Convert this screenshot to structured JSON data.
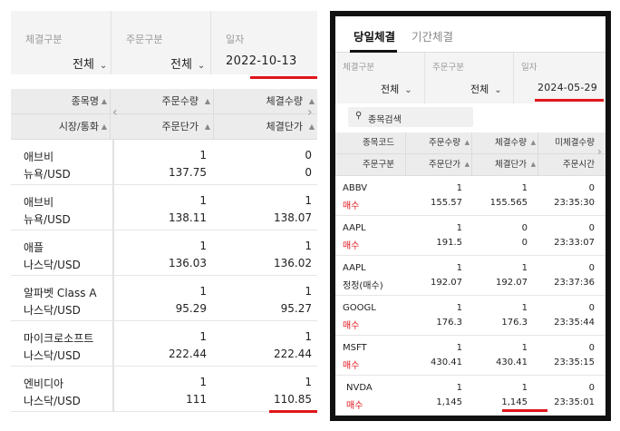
{
  "left": {
    "filters": {
      "exec_type_label": "체결구분",
      "exec_type_value": "전체",
      "order_type_label": "주문구분",
      "order_type_value": "전체",
      "date_label": "일자",
      "date_value": "2022-10-13"
    },
    "headers": {
      "row1": [
        "종목명",
        "주문수량",
        "체결수량"
      ],
      "row2": [
        "시장/통화",
        "주문단가",
        "체결단가"
      ]
    },
    "rows": [
      {
        "name": "애브비",
        "market": "뉴욕/USD",
        "order_qty": "1",
        "order_price": "137.75",
        "exec_qty": "0",
        "exec_price": "0"
      },
      {
        "name": "애브비",
        "market": "뉴욕/USD",
        "order_qty": "1",
        "order_price": "138.11",
        "exec_qty": "1",
        "exec_price": "138.07"
      },
      {
        "name": "애플",
        "market": "나스닥/USD",
        "order_qty": "1",
        "order_price": "136.03",
        "exec_qty": "1",
        "exec_price": "136.02"
      },
      {
        "name": "알파벳 Class A",
        "market": "나스닥/USD",
        "order_qty": "1",
        "order_price": "95.29",
        "exec_qty": "1",
        "exec_price": "95.27"
      },
      {
        "name": "마이크로소프트",
        "market": "나스닥/USD",
        "order_qty": "1",
        "order_price": "222.44",
        "exec_qty": "1",
        "exec_price": "222.44"
      },
      {
        "name": "엔비디아",
        "market": "나스닥/USD",
        "order_qty": "1",
        "order_price": "111",
        "exec_qty": "1",
        "exec_price": "110.85"
      }
    ]
  },
  "right": {
    "tabs": [
      "당일체결",
      "기간체결"
    ],
    "filters": {
      "exec_type_label": "체결구분",
      "exec_type_value": "전체",
      "order_type_label": "주문구분",
      "order_type_value": "전체",
      "date_label": "일자",
      "date_value": "2024-05-29"
    },
    "search_placeholder": "종목검색",
    "headers": {
      "row1": [
        "종목코드",
        "주문수량",
        "체결수량",
        "미체결수량"
      ],
      "row2": [
        "주문구분",
        "주문단가",
        "체결단가",
        "주문시간"
      ]
    },
    "rows": [
      {
        "code": "ABBV",
        "type": "매수",
        "order_qty": "1",
        "order_price": "155.57",
        "exec_qty": "1",
        "exec_price": "155.565",
        "unfilled": "0",
        "time": "23:35:30"
      },
      {
        "code": "AAPL",
        "type": "매수",
        "order_qty": "1",
        "order_price": "191.5",
        "exec_qty": "0",
        "exec_price": "0",
        "unfilled": "0",
        "time": "23:33:07"
      },
      {
        "code": "AAPL",
        "type": "정정(매수)",
        "order_qty": "1",
        "order_price": "192.07",
        "exec_qty": "1",
        "exec_price": "192.07",
        "unfilled": "0",
        "time": "23:37:36"
      },
      {
        "code": "GOOGL",
        "type": "매수",
        "order_qty": "1",
        "order_price": "176.3",
        "exec_qty": "1",
        "exec_price": "176.3",
        "unfilled": "0",
        "time": "23:35:44"
      },
      {
        "code": "MSFT",
        "type": "매수",
        "order_qty": "1",
        "order_price": "430.41",
        "exec_qty": "1",
        "exec_price": "430.41",
        "unfilled": "0",
        "time": "23:35:15"
      },
      {
        "code": "NVDA",
        "type": "매수",
        "order_qty": "1",
        "order_price": "1,145",
        "exec_qty": "1",
        "exec_price": "1,145",
        "unfilled": "0",
        "time": "23:35:01"
      }
    ]
  },
  "colors": {
    "highlight_red": "#e0151b",
    "buy_red": "#e0151b",
    "header_bg": "#ececec",
    "filter_bg": "#f4f4f4",
    "frame_black": "#111111"
  }
}
